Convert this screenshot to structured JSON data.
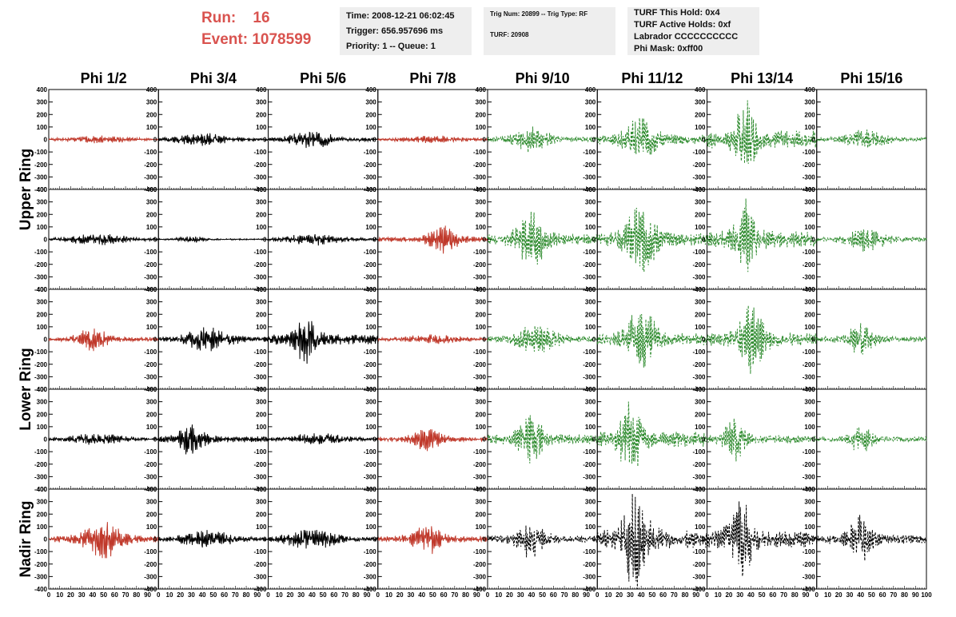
{
  "run": {
    "run_label": "Run:",
    "run_value": "16",
    "event_label": "Event:",
    "event_value": "1078599"
  },
  "time_box": {
    "time": "Time: 2008-12-21 06:02:45",
    "trigger": "Trigger: 656.957696 ms",
    "priority": "Priority: 1 -- Queue: 1"
  },
  "trig_box": {
    "trig": "Trig Num: 20899 -- Trig Type: RF",
    "turf": "TURF: 20908"
  },
  "turf_box": {
    "this_hold": "TURF This Hold: 0x4",
    "active_holds": "TURF Active Holds: 0xf",
    "labrador": "Labrador CCCCCCCCCC",
    "phi_mask": "Phi Mask: 0xff00"
  },
  "phi_headers": [
    "Phi 1/2",
    "Phi 3/4",
    "Phi 5/6",
    "Phi 7/8",
    "Phi 9/10",
    "Phi 11/12",
    "Phi 13/14",
    "Phi 15/16"
  ],
  "ring_labels": [
    "Upper Ring",
    "Lower Ring",
    "Nadir Ring"
  ],
  "y_ticks": [
    "400",
    "300",
    "200",
    "100",
    "0",
    "-100",
    "-200",
    "-300",
    "-400"
  ],
  "x_ticks": [
    "0",
    "10",
    "20",
    "30",
    "40",
    "50",
    "60",
    "70",
    "80",
    "90",
    "100"
  ],
  "colors": {
    "red": "#c0392b",
    "black": "#000000",
    "green": "#2e8b2e",
    "info_text": "#d9534f",
    "box_bg": "#eeeeee"
  },
  "chart_data": {
    "type": "line",
    "xlabel": "",
    "ylabel": "",
    "xlim": [
      0,
      100
    ],
    "ylim": [
      -400,
      400
    ],
    "rows": 5,
    "columns": 8,
    "panels": [
      [
        {
          "color": "red",
          "amp": 25,
          "center": 45,
          "width": 60,
          "style": "solid",
          "seed": 1
        },
        {
          "color": "black",
          "amp": 45,
          "center": 40,
          "width": 45,
          "style": "solid",
          "seed": 2
        },
        {
          "color": "black",
          "amp": 65,
          "center": 40,
          "width": 35,
          "style": "solid",
          "seed": 3
        },
        {
          "color": "red",
          "amp": 25,
          "center": 50,
          "width": 60,
          "style": "solid",
          "seed": 4
        },
        {
          "color": "green",
          "amp": 90,
          "center": 40,
          "width": 30,
          "style": "dashed",
          "seed": 5
        },
        {
          "color": "green",
          "amp": 170,
          "center": 40,
          "width": 25,
          "style": "dashed",
          "seed": 6
        },
        {
          "color": "green",
          "amp": 330,
          "center": 35,
          "width": 15,
          "style": "dashed",
          "seed": 7
        },
        {
          "color": "green",
          "amp": 70,
          "center": 45,
          "width": 35,
          "style": "dashed",
          "seed": 8
        }
      ],
      [
        {
          "color": "black",
          "amp": 40,
          "center": 45,
          "width": 50,
          "style": "solid",
          "seed": 9
        },
        {
          "color": "black",
          "amp": 25,
          "center": 30,
          "width": 20,
          "style": "solid",
          "seed": 10
        },
        {
          "color": "black",
          "amp": 40,
          "center": 40,
          "width": 50,
          "style": "solid",
          "seed": 11
        },
        {
          "color": "red",
          "amp": 90,
          "center": 60,
          "width": 25,
          "style": "solid",
          "seed": 12
        },
        {
          "color": "green",
          "amp": 190,
          "center": 40,
          "width": 25,
          "style": "dashed",
          "seed": 13
        },
        {
          "color": "green",
          "amp": 240,
          "center": 40,
          "width": 25,
          "style": "dashed",
          "seed": 14
        },
        {
          "color": "green",
          "amp": 300,
          "center": 35,
          "width": 18,
          "style": "dashed",
          "seed": 15
        },
        {
          "color": "green",
          "amp": 80,
          "center": 45,
          "width": 35,
          "style": "dashed",
          "seed": 16
        }
      ],
      [
        {
          "color": "red",
          "amp": 80,
          "center": 40,
          "width": 25,
          "style": "solid",
          "seed": 17
        },
        {
          "color": "black",
          "amp": 80,
          "center": 45,
          "width": 40,
          "style": "solid",
          "seed": 18
        },
        {
          "color": "black",
          "amp": 180,
          "center": 35,
          "width": 18,
          "style": "solid",
          "seed": 19
        },
        {
          "color": "red",
          "amp": 30,
          "center": 50,
          "width": 60,
          "style": "solid",
          "seed": 20
        },
        {
          "color": "green",
          "amp": 100,
          "center": 45,
          "width": 35,
          "style": "dashed",
          "seed": 21
        },
        {
          "color": "green",
          "amp": 210,
          "center": 40,
          "width": 25,
          "style": "dashed",
          "seed": 22
        },
        {
          "color": "green",
          "amp": 240,
          "center": 40,
          "width": 22,
          "style": "dashed",
          "seed": 23
        },
        {
          "color": "green",
          "amp": 110,
          "center": 40,
          "width": 22,
          "style": "dashed",
          "seed": 24
        }
      ],
      [
        {
          "color": "black",
          "amp": 40,
          "center": 45,
          "width": 50,
          "style": "solid",
          "seed": 25
        },
        {
          "color": "black",
          "amp": 110,
          "center": 30,
          "width": 22,
          "style": "solid",
          "seed": 26
        },
        {
          "color": "black",
          "amp": 40,
          "center": 45,
          "width": 50,
          "style": "solid",
          "seed": 27
        },
        {
          "color": "red",
          "amp": 80,
          "center": 45,
          "width": 25,
          "style": "solid",
          "seed": 28
        },
        {
          "color": "green",
          "amp": 170,
          "center": 40,
          "width": 22,
          "style": "dashed",
          "seed": 29
        },
        {
          "color": "green",
          "amp": 280,
          "center": 30,
          "width": 18,
          "style": "dashed",
          "seed": 30
        },
        {
          "color": "green",
          "amp": 150,
          "center": 25,
          "width": 18,
          "style": "dashed",
          "seed": 31
        },
        {
          "color": "green",
          "amp": 90,
          "center": 40,
          "width": 20,
          "style": "dashed",
          "seed": 32
        }
      ],
      [
        {
          "color": "red",
          "amp": 130,
          "center": 50,
          "width": 30,
          "style": "solid",
          "seed": 33
        },
        {
          "color": "black",
          "amp": 60,
          "center": 45,
          "width": 45,
          "style": "solid",
          "seed": 34
        },
        {
          "color": "black",
          "amp": 70,
          "center": 40,
          "width": 45,
          "style": "solid",
          "seed": 35
        },
        {
          "color": "red",
          "amp": 110,
          "center": 45,
          "width": 25,
          "style": "solid",
          "seed": 36
        },
        {
          "color": "black",
          "amp": 130,
          "center": 40,
          "width": 25,
          "style": "dashed",
          "seed": 37
        },
        {
          "color": "black",
          "amp": 330,
          "center": 35,
          "width": 22,
          "style": "dashed",
          "seed": 38
        },
        {
          "color": "black",
          "amp": 290,
          "center": 30,
          "width": 20,
          "style": "dashed",
          "seed": 39
        },
        {
          "color": "black",
          "amp": 170,
          "center": 40,
          "width": 20,
          "style": "dashed",
          "seed": 40
        }
      ]
    ]
  }
}
